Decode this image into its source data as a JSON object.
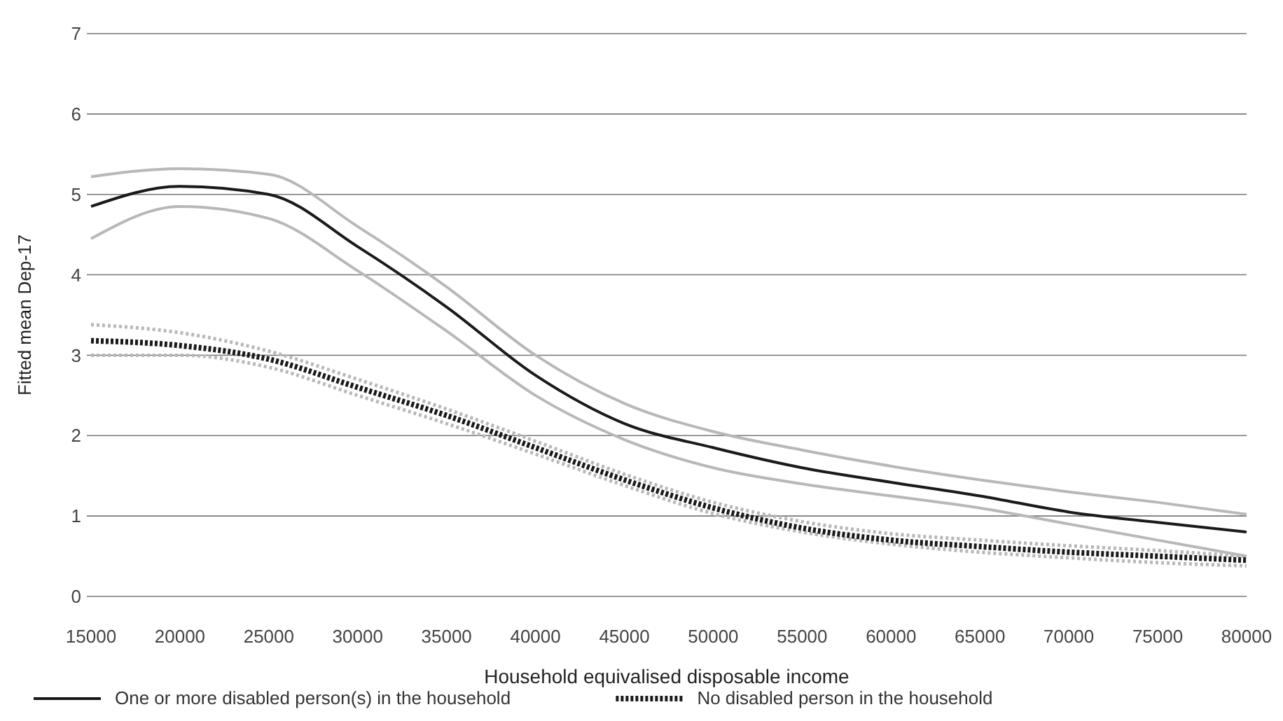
{
  "chart_data": {
    "type": "line",
    "xlabel": "Household equivalised disposable income",
    "ylabel": "Fitted mean Dep-17",
    "x": [
      15000,
      20000,
      25000,
      30000,
      35000,
      40000,
      45000,
      50000,
      55000,
      60000,
      65000,
      70000,
      75000,
      80000
    ],
    "series": [
      {
        "color": "#b8b8b8",
        "line_style": "solid",
        "values": [
          4.45,
          4.85,
          4.7,
          4.05,
          3.3,
          2.5,
          1.95,
          1.6,
          1.4,
          1.25,
          1.1,
          0.9,
          0.7,
          0.5
        ]
      },
      {
        "color": "#b8b8b8",
        "line_style": "solid",
        "values": [
          5.22,
          5.32,
          5.25,
          4.6,
          3.85,
          3.0,
          2.4,
          2.05,
          1.82,
          1.62,
          1.45,
          1.3,
          1.17,
          1.02
        ]
      },
      {
        "color": "#b8b8b8",
        "line_style": "dotted",
        "values": [
          3.0,
          3.0,
          2.85,
          2.5,
          2.15,
          1.77,
          1.38,
          1.03,
          0.8,
          0.65,
          0.55,
          0.48,
          0.42,
          0.38
        ]
      },
      {
        "color": "#b8b8b8",
        "line_style": "dotted",
        "values": [
          3.38,
          3.28,
          3.05,
          2.7,
          2.33,
          1.93,
          1.52,
          1.17,
          0.93,
          0.78,
          0.7,
          0.63,
          0.57,
          0.5
        ]
      },
      {
        "name": "One or more disabled person(s) in the household",
        "color": "#1a1a1a",
        "line_style": "solid",
        "values": [
          4.85,
          5.1,
          5.0,
          4.35,
          3.6,
          2.75,
          2.15,
          1.85,
          1.6,
          1.42,
          1.25,
          1.05,
          0.92,
          0.8
        ]
      },
      {
        "name": "No disabled person in the household",
        "color": "#1a1a1a",
        "line_style": "dotted",
        "values": [
          3.18,
          3.12,
          2.95,
          2.6,
          2.25,
          1.85,
          1.45,
          1.1,
          0.85,
          0.7,
          0.62,
          0.55,
          0.5,
          0.45
        ]
      }
    ],
    "xlim": [
      15000,
      80000
    ],
    "xticks": [
      15000,
      20000,
      25000,
      30000,
      35000,
      40000,
      45000,
      50000,
      55000,
      60000,
      65000,
      70000,
      75000,
      80000
    ],
    "ylim": [
      0,
      7
    ],
    "yticks": [
      0,
      1,
      2,
      3,
      4,
      5,
      6,
      7
    ],
    "grid": "y",
    "legend": "bottom"
  }
}
